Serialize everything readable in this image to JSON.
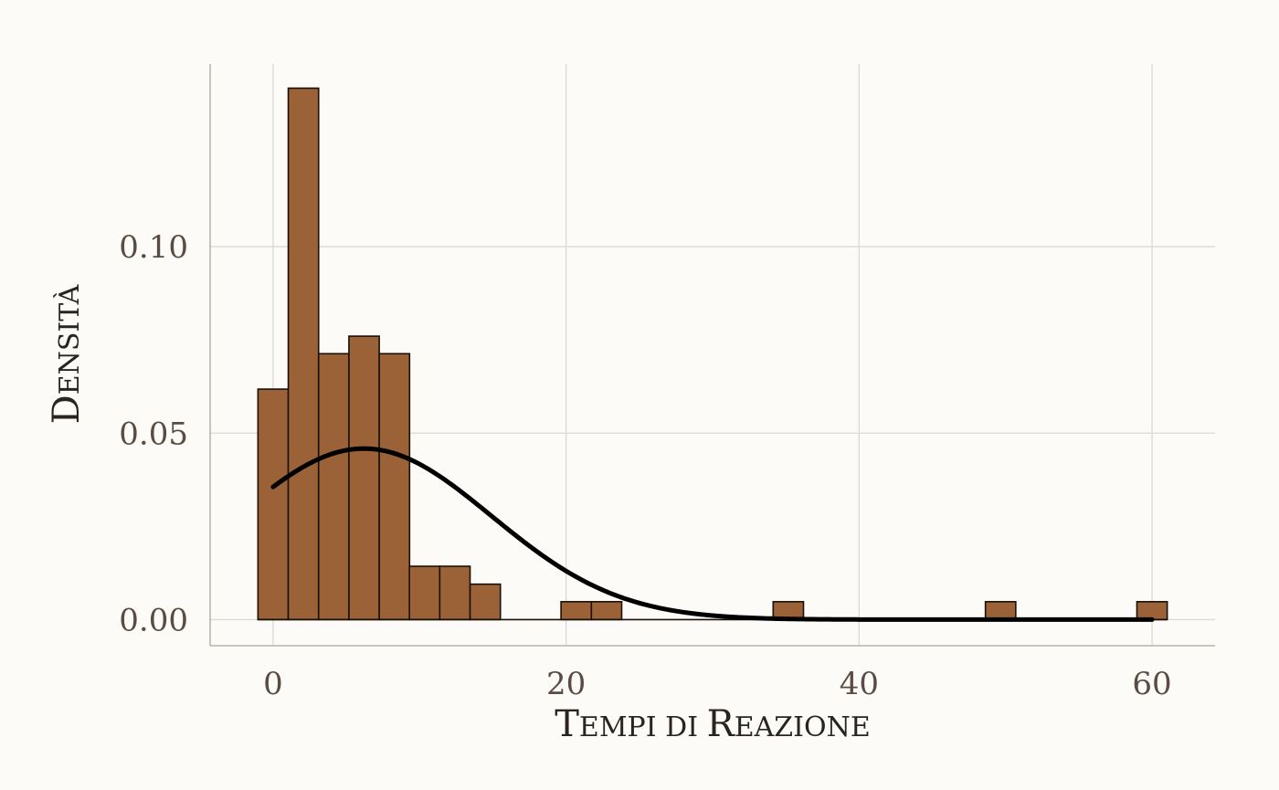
{
  "chart_data": {
    "type": "bar",
    "subtype": "histogram_with_density",
    "xlabel": "Tempi di Reazione",
    "ylabel": "Densità",
    "xlim": [
      -4.3,
      64.3
    ],
    "ylim": [
      -0.007,
      0.149
    ],
    "xticks": [
      0,
      20,
      40,
      60
    ],
    "yticks": [
      0.0,
      0.05,
      0.1
    ],
    "xtick_labels": [
      "0",
      "20",
      "40",
      "60"
    ],
    "ytick_labels": [
      "0.00",
      "0.05",
      "0.10"
    ],
    "grid": true,
    "bin_width": 2.07,
    "bins": [
      {
        "x": 0.0,
        "density": 0.0618
      },
      {
        "x": 2.07,
        "density": 0.1425
      },
      {
        "x": 4.14,
        "density": 0.0713
      },
      {
        "x": 6.21,
        "density": 0.076
      },
      {
        "x": 8.28,
        "density": 0.0713
      },
      {
        "x": 10.34,
        "density": 0.0143
      },
      {
        "x": 12.41,
        "density": 0.0143
      },
      {
        "x": 14.48,
        "density": 0.0095
      },
      {
        "x": 20.69,
        "density": 0.0048
      },
      {
        "x": 22.76,
        "density": 0.0048
      },
      {
        "x": 35.17,
        "density": 0.0048
      },
      {
        "x": 49.66,
        "density": 0.0048
      },
      {
        "x": 60.0,
        "density": 0.0048
      }
    ],
    "density_curve": {
      "type": "normal",
      "mean": 6.2,
      "sd": 8.7,
      "x_range": [
        0,
        60
      ]
    },
    "colors": {
      "bar_fill": "#9a6236",
      "bar_stroke": "#1a1008",
      "curve": "#000000",
      "grid": "#dcdad5",
      "background": "#fcfbf8",
      "tick_text": "#5a4c42",
      "title_text": "#2a2420"
    }
  }
}
